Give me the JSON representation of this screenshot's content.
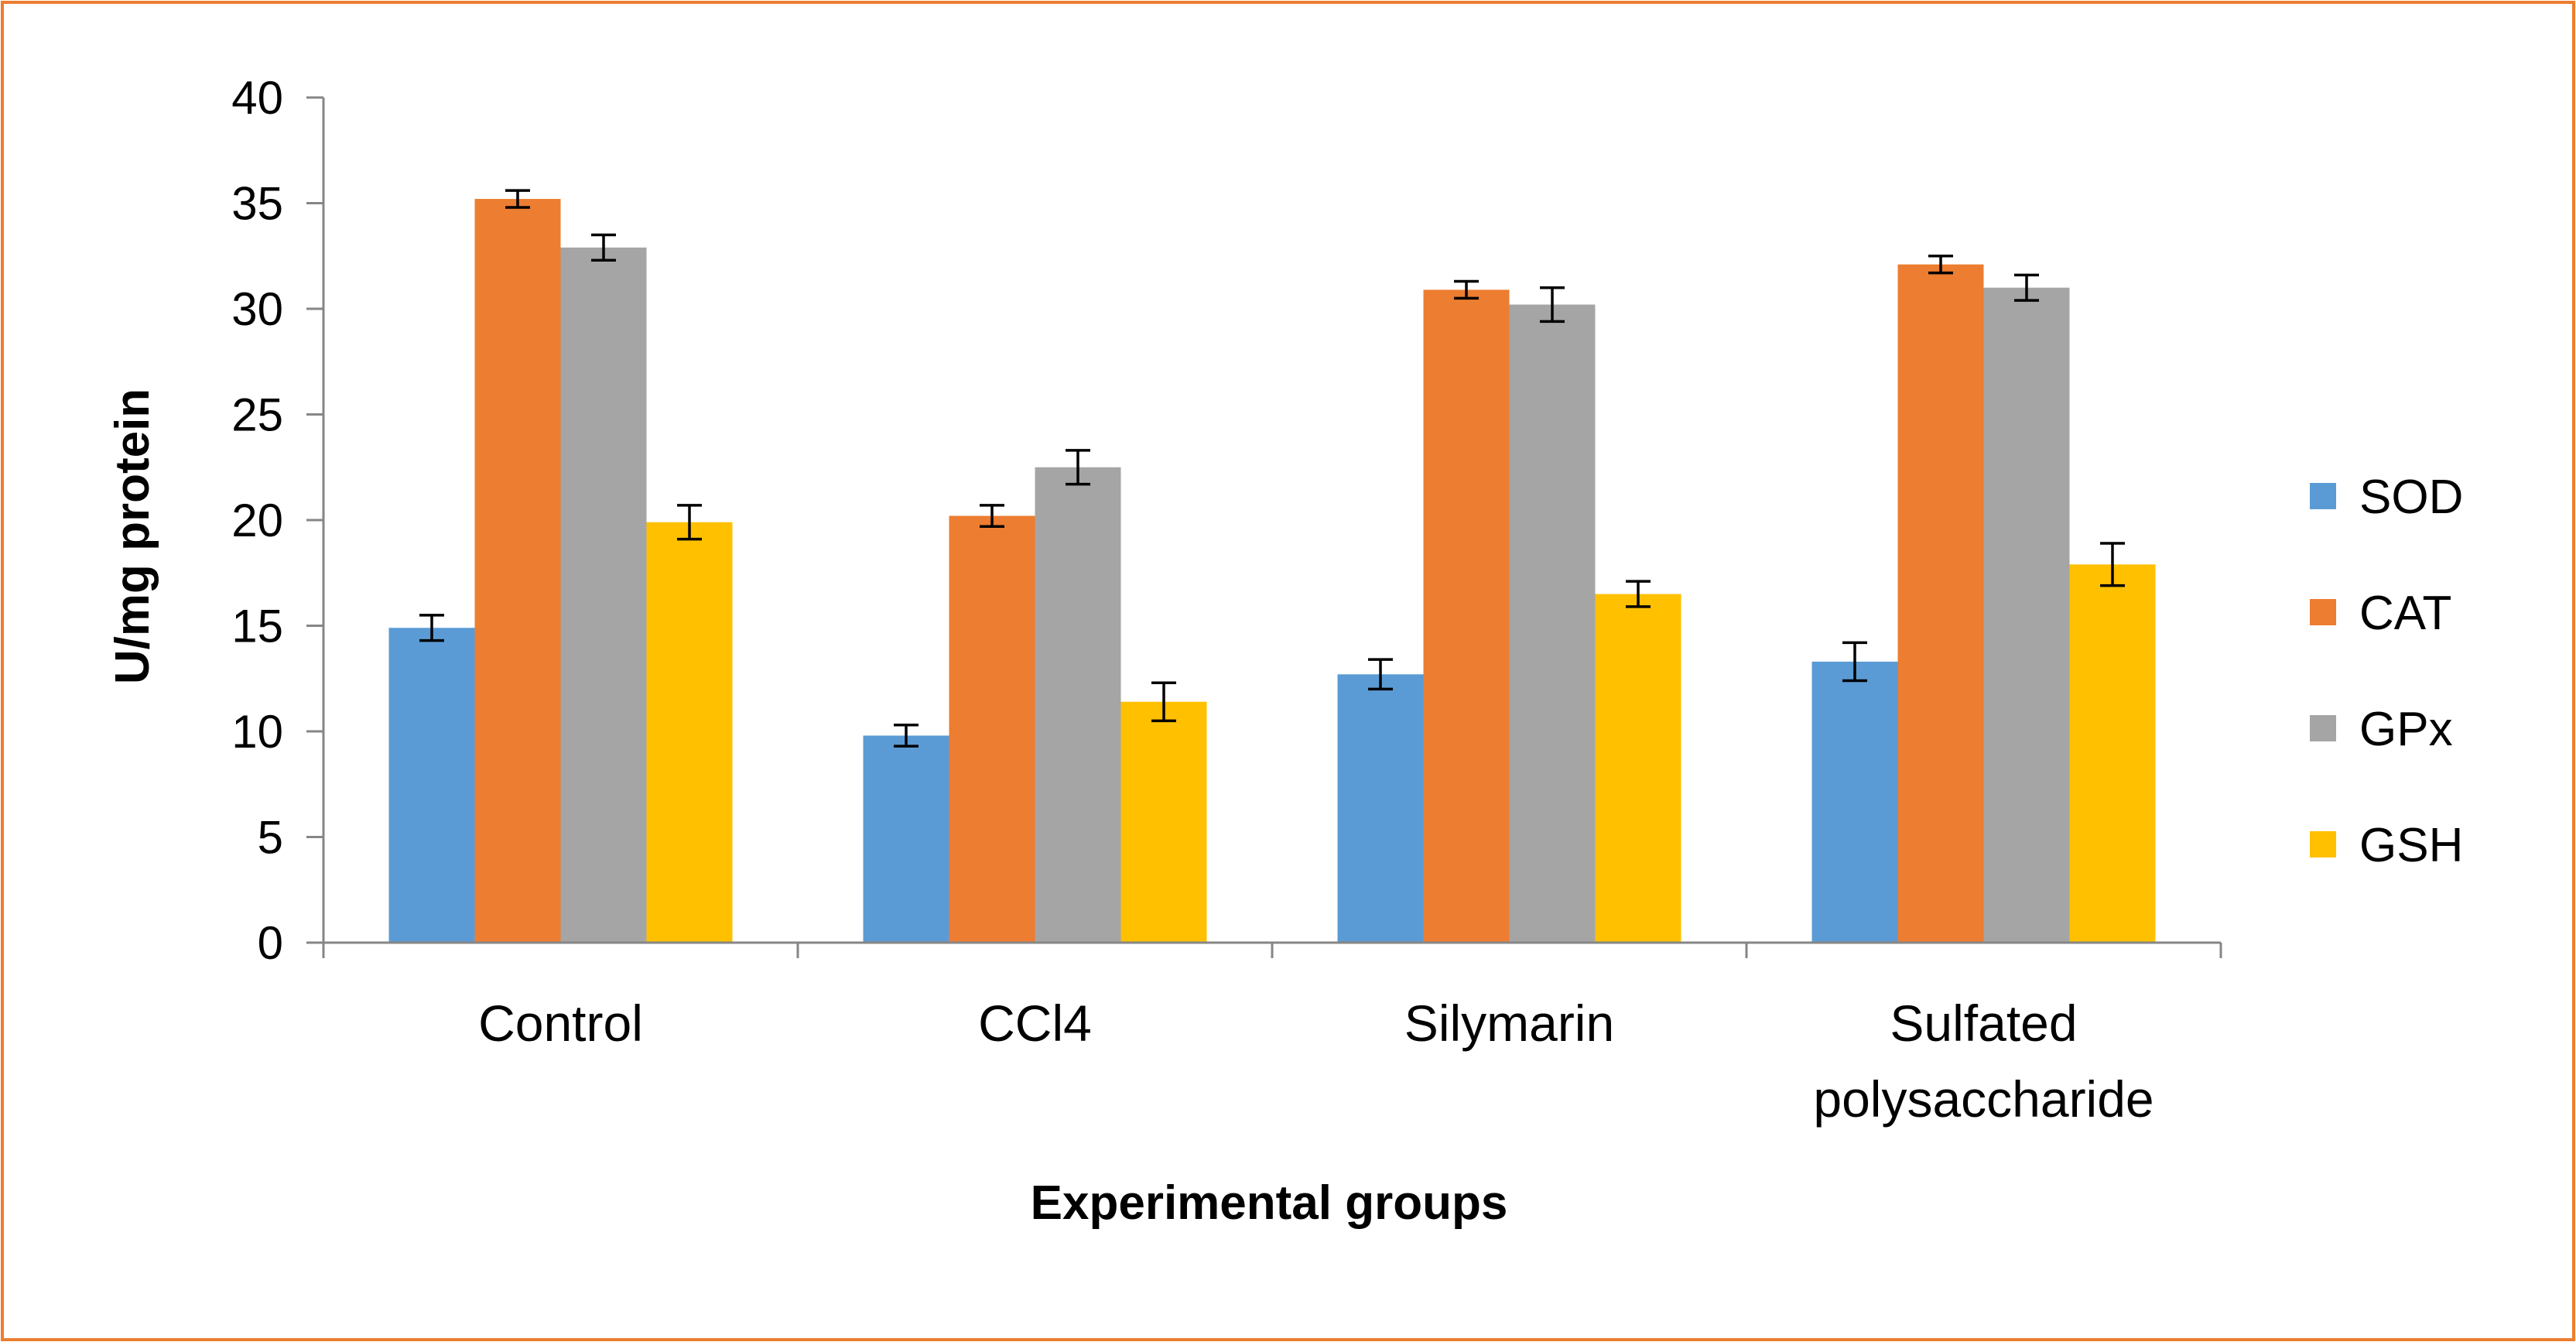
{
  "chart_data": {
    "type": "bar",
    "title": "",
    "xlabel": "Experimental groups",
    "ylabel": "U/mg protein",
    "ylim": [
      0,
      40
    ],
    "yticks": [
      0,
      5,
      10,
      15,
      20,
      25,
      30,
      35,
      40
    ],
    "grid": false,
    "legend_position": "right",
    "categories": [
      [
        "Control"
      ],
      [
        "CCl4"
      ],
      [
        "Silymarin"
      ],
      [
        "Sulfated",
        "polysaccharide"
      ]
    ],
    "series": [
      {
        "name": "SOD",
        "color": "#5B9BD5",
        "values": [
          14.9,
          9.8,
          12.7,
          13.3
        ],
        "errors": [
          0.6,
          0.5,
          0.7,
          0.9
        ]
      },
      {
        "name": "CAT",
        "color": "#ED7D31",
        "values": [
          35.2,
          20.2,
          30.9,
          32.1
        ],
        "errors": [
          0.4,
          0.5,
          0.4,
          0.4
        ]
      },
      {
        "name": "GPx",
        "color": "#A5A5A5",
        "values": [
          32.9,
          22.5,
          30.2,
          31.0
        ],
        "errors": [
          0.6,
          0.8,
          0.8,
          0.6
        ]
      },
      {
        "name": "GSH",
        "color": "#FFC000",
        "values": [
          19.9,
          11.4,
          16.5,
          17.9
        ],
        "errors": [
          0.8,
          0.9,
          0.6,
          1.0
        ]
      }
    ],
    "frame_color": "#ED7D31",
    "axis_color": "#868686"
  }
}
